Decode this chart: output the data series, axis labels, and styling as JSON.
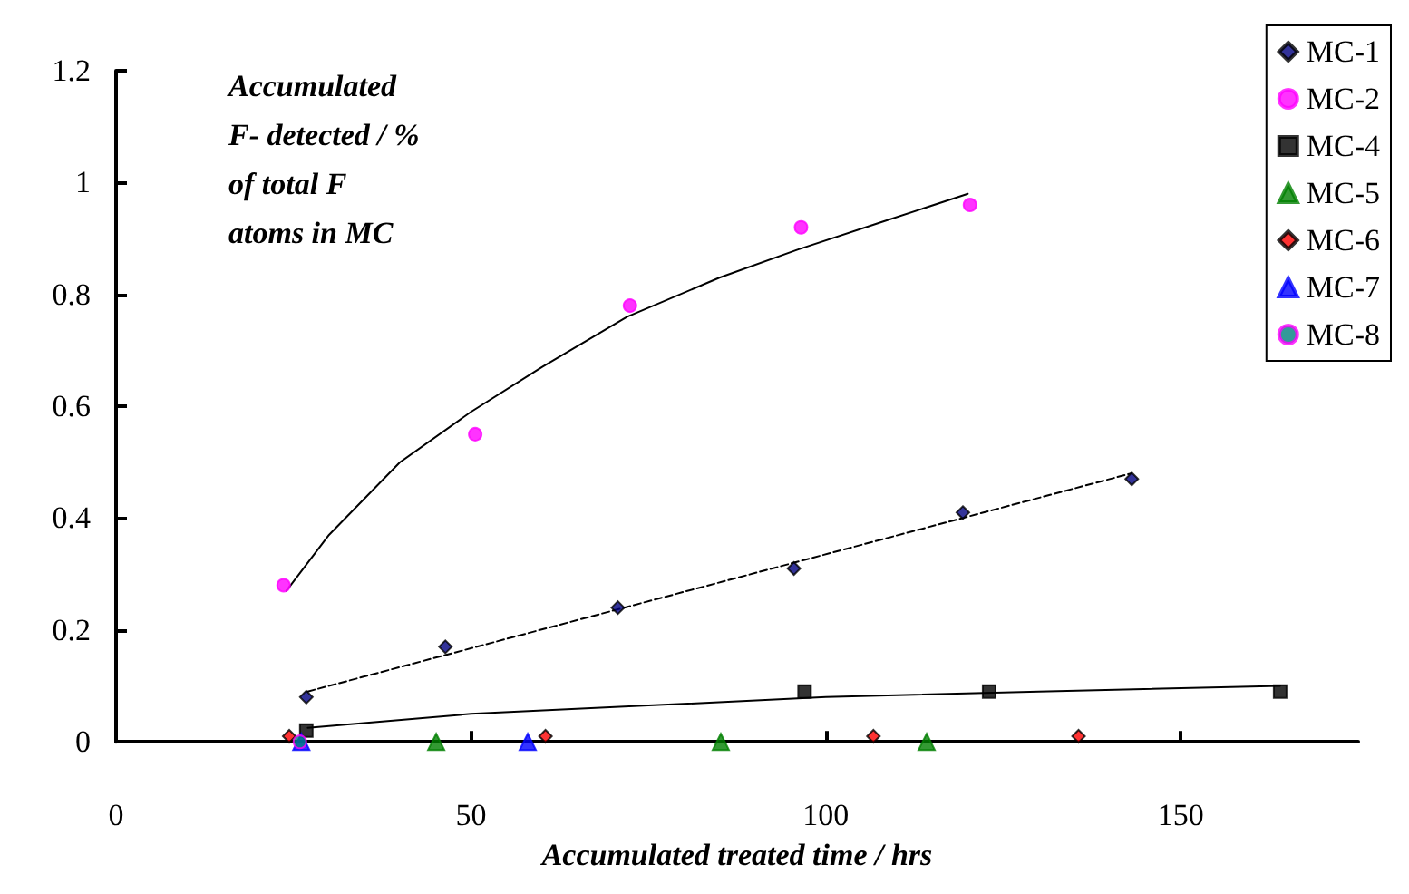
{
  "chart_data": {
    "type": "scatter",
    "ylabel": "Accumulated\nF- detected / %\nof total F\natoms in MC",
    "xlabel": "Accumulated treated time / hrs",
    "xlim": [
      0,
      175
    ],
    "xticks": [
      0,
      50,
      100,
      150
    ],
    "ylim": [
      0,
      1.2
    ],
    "yticks": [
      0,
      0.2,
      0.4,
      0.6,
      0.8,
      1,
      1.2
    ],
    "grid": false,
    "legend": "top right",
    "series": [
      {
        "type": "line",
        "color": "#000000",
        "marker": "none",
        "line_style": "solid",
        "x": [
          24,
          30,
          40,
          50,
          60,
          72,
          85,
          96,
          108,
          120
        ],
        "values": [
          0.27,
          0.37,
          0.5,
          0.59,
          0.67,
          0.76,
          0.83,
          0.88,
          0.93,
          0.98
        ]
      },
      {
        "type": "line",
        "color": "#000000",
        "marker": "none",
        "line_style": "dashed",
        "x": [
          27,
          143
        ],
        "values": [
          0.09,
          0.48
        ]
      },
      {
        "type": "line",
        "color": "#000000",
        "marker": "none",
        "line_style": "solid",
        "x": [
          27,
          50,
          75,
          100,
          130,
          164
        ],
        "values": [
          0.025,
          0.05,
          0.065,
          0.08,
          0.09,
          0.1
        ]
      },
      {
        "name": "MC-1",
        "color": "#000080",
        "marker": "diamond",
        "x": [
          26.8,
          46.4,
          70.7,
          95.5,
          119.3,
          143.1
        ],
        "values": [
          0.08,
          0.17,
          0.24,
          0.31,
          0.41,
          0.47
        ]
      },
      {
        "name": "MC-2",
        "color": "#ff00ff",
        "marker": "circle",
        "x": [
          23.6,
          50.6,
          72.4,
          96.5,
          120.3
        ],
        "values": [
          0.28,
          0.55,
          0.78,
          0.92,
          0.96
        ]
      },
      {
        "name": "MC-4",
        "color": "#000000",
        "marker": "square",
        "x": [
          26.8,
          97,
          123,
          164
        ],
        "values": [
          0.02,
          0.09,
          0.09,
          0.09
        ]
      },
      {
        "name": "MC-5",
        "color": "#008000",
        "marker": "triangle",
        "x": [
          45.1,
          85.2,
          114.2
        ],
        "values": [
          0,
          0,
          0
        ]
      },
      {
        "name": "MC-6",
        "color": "#ff0000",
        "marker": "diamond",
        "x": [
          24.4,
          60.5,
          106.7,
          135.6
        ],
        "values": [
          0.01,
          0.01,
          0.01,
          0.01
        ]
      },
      {
        "name": "MC-7",
        "color": "#0000ff",
        "marker": "triangle",
        "x": [
          26.1,
          58
        ],
        "values": [
          0,
          0
        ]
      },
      {
        "name": "MC-8",
        "color": "#008080",
        "marker": "circle",
        "x": [
          25.9
        ],
        "values": [
          0
        ]
      }
    ]
  }
}
